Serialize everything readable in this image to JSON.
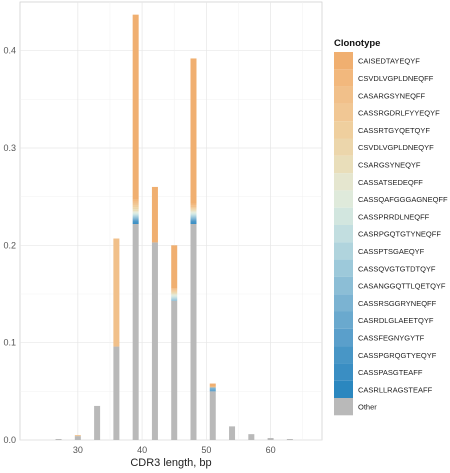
{
  "chart_data": {
    "type": "bar",
    "stacked": true,
    "xlabel": "CDR3 length, bp",
    "ylabel": "",
    "xlim": [
      21,
      68
    ],
    "ylim": [
      0,
      0.45
    ],
    "x_ticks": [
      "30",
      "40",
      "50",
      "60"
    ],
    "y_ticks": [
      "0.0",
      "0.1",
      "0.2",
      "0.3",
      "0.4"
    ],
    "grid": true,
    "legend_position": "right",
    "legend_title": "Clonotype",
    "x": [
      27,
      30,
      33,
      36,
      39,
      42,
      45,
      48,
      51,
      54,
      57,
      60,
      63
    ],
    "series": [
      {
        "name": "Other",
        "color": "#b9b9b9",
        "values": [
          0.001,
          0.004,
          0.035,
          0.096,
          0.222,
          0.203,
          0.143,
          0.222,
          0.05,
          0.014,
          0.006,
          0.002,
          0.001
        ]
      },
      {
        "name": "CASRLLRAGSTEAFF",
        "color": "#2b87bf",
        "values": [
          0,
          0,
          0,
          0,
          0.001,
          0,
          0,
          0.001,
          0,
          0,
          0,
          0,
          0
        ]
      },
      {
        "name": "CASSPASGTEAFF",
        "color": "#3a8ec3",
        "values": [
          0,
          0,
          0,
          0,
          0.001,
          0,
          0,
          0.001,
          0,
          0,
          0,
          0,
          0
        ]
      },
      {
        "name": "CASSPGRQGTYEQYF",
        "color": "#4896c6",
        "values": [
          0,
          0,
          0,
          0,
          0.001,
          0,
          0,
          0.001,
          0.001,
          0,
          0,
          0,
          0
        ]
      },
      {
        "name": "CASSFEGNYGYTF",
        "color": "#5a9fcb",
        "values": [
          0,
          0,
          0,
          0,
          0.001,
          0,
          0,
          0.001,
          0.001,
          0,
          0,
          0,
          0
        ]
      },
      {
        "name": "CASRDLGLAEETQYF",
        "color": "#6aa9ce",
        "values": [
          0,
          0,
          0,
          0,
          0.001,
          0,
          0,
          0.001,
          0.001,
          0,
          0,
          0,
          0
        ]
      },
      {
        "name": "CASSRSGGRYNEQFF",
        "color": "#7bb3d2",
        "values": [
          0,
          0,
          0,
          0,
          0.001,
          0,
          0,
          0.001,
          0.001,
          0,
          0,
          0,
          0
        ]
      },
      {
        "name": "CASANGGQTTLQETQYF",
        "color": "#8cbed6",
        "values": [
          0,
          0,
          0,
          0,
          0.001,
          0,
          0.001,
          0.001,
          0,
          0,
          0,
          0,
          0
        ]
      },
      {
        "name": "CASSQVGTGTDTQYF",
        "color": "#9dc9da",
        "values": [
          0,
          0,
          0,
          0,
          0.001,
          0,
          0.001,
          0.001,
          0,
          0,
          0,
          0,
          0
        ]
      },
      {
        "name": "CASSPTSGAEQYF",
        "color": "#b0d4dd",
        "values": [
          0,
          0,
          0,
          0,
          0.001,
          0,
          0.001,
          0.001,
          0,
          0,
          0,
          0,
          0
        ]
      },
      {
        "name": "CASRPGQTGTYNEQFF",
        "color": "#c2dee0",
        "values": [
          0,
          0,
          0,
          0,
          0.001,
          0,
          0.001,
          0.001,
          0,
          0,
          0,
          0,
          0
        ]
      },
      {
        "name": "CASSPRRDLNEQFF",
        "color": "#d2e6df",
        "values": [
          0,
          0,
          0,
          0,
          0.001,
          0,
          0.001,
          0.001,
          0,
          0,
          0,
          0,
          0
        ]
      },
      {
        "name": "CASSQAFGGGAGNEQFF",
        "color": "#dfeadb",
        "values": [
          0,
          0,
          0,
          0,
          0.001,
          0,
          0.001,
          0.001,
          0,
          0,
          0,
          0,
          0
        ]
      },
      {
        "name": "CASSATSEDEQFF",
        "color": "#e5e6cf",
        "values": [
          0,
          0,
          0,
          0,
          0.001,
          0,
          0.001,
          0.001,
          0,
          0,
          0,
          0,
          0
        ]
      },
      {
        "name": "CSARGSYNEQYF",
        "color": "#e9deba",
        "values": [
          0,
          0,
          0,
          0,
          0.002,
          0,
          0.001,
          0.001,
          0,
          0,
          0,
          0,
          0
        ]
      },
      {
        "name": "CSVDLVGPLDNEQYF",
        "color": "#ecd6ab",
        "values": [
          0,
          0,
          0,
          0,
          0.002,
          0,
          0.001,
          0.001,
          0,
          0,
          0,
          0,
          0
        ]
      },
      {
        "name": "CASSRTGYQETQYF",
        "color": "#efcf9e",
        "values": [
          0,
          0,
          0,
          0,
          0.002,
          0,
          0.001,
          0.001,
          0,
          0,
          0,
          0,
          0
        ]
      },
      {
        "name": "CASSRGDRLFYYEQYF",
        "color": "#f1c794",
        "values": [
          0,
          0,
          0,
          0,
          0.002,
          0,
          0.001,
          0.001,
          0,
          0,
          0,
          0,
          0
        ]
      },
      {
        "name": "CASARGSYNEQFF",
        "color": "#f1c08a",
        "values": [
          0,
          0.001,
          0,
          0.111,
          0.002,
          0,
          0.001,
          0.002,
          0.001,
          0,
          0,
          0,
          0
        ]
      },
      {
        "name": "CSVDLVGPLDNEQFF",
        "color": "#f2b87d",
        "values": [
          0,
          0,
          0,
          0,
          0.002,
          0,
          0.001,
          0.002,
          0,
          0,
          0,
          0,
          0
        ]
      },
      {
        "name": "CAISEDTAYEQYF",
        "color": "#f0af70",
        "values": [
          0,
          0,
          0,
          0,
          0.19,
          0.057,
          0.044,
          0.149,
          0.003,
          0,
          0,
          0,
          0
        ]
      }
    ]
  }
}
